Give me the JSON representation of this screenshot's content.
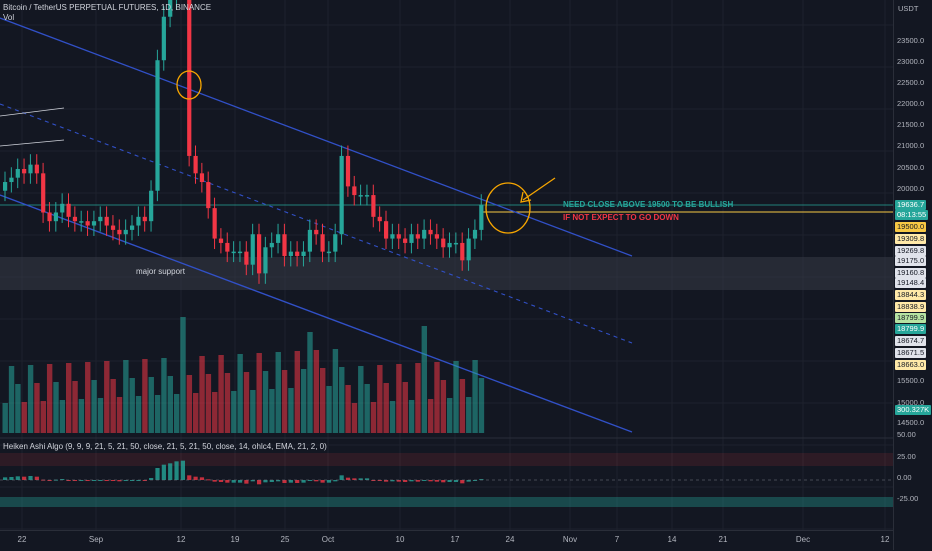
{
  "header": {
    "title": "Bitcoin / TetherUS PERPETUAL FUTURES, 1D, BINANCE",
    "vol_label": "Vol"
  },
  "indicator": {
    "label": "Heiken Ashi Algo (9, 9, 9, 21, 5, 21, 50, close, 21, 5, 21, 50, close, 14, ohlc4, EMA, 21, 2, 0)"
  },
  "annotations": {
    "note1": "NEED CLOSE ABOVE 19500 TO BE BULLISH",
    "note2": "IF NOT EXPECT TO GO DOWN",
    "support": "major support"
  },
  "price_axis": {
    "currency": "USDT",
    "labels": [
      "23500.0",
      "23000.0",
      "22500.0",
      "22000.0",
      "21500.0",
      "21000.0",
      "20500.0",
      "20000.0",
      "15500.0",
      "15000.0",
      "14500.0"
    ],
    "indicator_labels": [
      "50.00",
      "25.00",
      "0.00",
      "-25.00"
    ],
    "tags": [
      {
        "text": "19636.7",
        "bg": "#26a69a",
        "fg": "#ffffff"
      },
      {
        "text": "08:13:55",
        "bg": "#26a69a",
        "fg": "#ffffff"
      },
      {
        "text": "19500.0",
        "bg": "#f7c844",
        "fg": "#131722"
      },
      {
        "text": "19309.8",
        "bg": "#ffe9a8",
        "fg": "#131722"
      },
      {
        "text": "19269.8",
        "bg": "#e0e3eb",
        "fg": "#131722"
      },
      {
        "text": "19175.0",
        "bg": "#e0e3eb",
        "fg": "#131722"
      },
      {
        "text": "19160.8",
        "bg": "#e0e3eb",
        "fg": "#131722"
      },
      {
        "text": "19148.4",
        "bg": "#e0e3eb",
        "fg": "#131722"
      },
      {
        "text": "18844.3",
        "bg": "#ffe9a8",
        "fg": "#131722"
      },
      {
        "text": "18838.9",
        "bg": "#ffe9a8",
        "fg": "#131722"
      },
      {
        "text": "18799.9",
        "bg": "#b6e3a2",
        "fg": "#131722"
      },
      {
        "text": "18799.9",
        "bg": "#26a69a",
        "fg": "#ffffff"
      },
      {
        "text": "18674.7",
        "bg": "#e0e3eb",
        "fg": "#131722"
      },
      {
        "text": "18671.5",
        "bg": "#e0e3eb",
        "fg": "#131722"
      },
      {
        "text": "18663.0",
        "bg": "#ffe9a8",
        "fg": "#131722"
      },
      {
        "text": "300.327K",
        "bg": "#26a69a",
        "fg": "#ffffff"
      }
    ]
  },
  "time_axis": [
    "22",
    "Sep",
    "12",
    "19",
    "25",
    "Oct",
    "10",
    "17",
    "24",
    "Nov",
    "7",
    "14",
    "21",
    "Dec",
    "12"
  ],
  "colors": {
    "up": "#26a69a",
    "down": "#f23645",
    "channel": "#3150c7",
    "accent": "#f7a600"
  }
}
